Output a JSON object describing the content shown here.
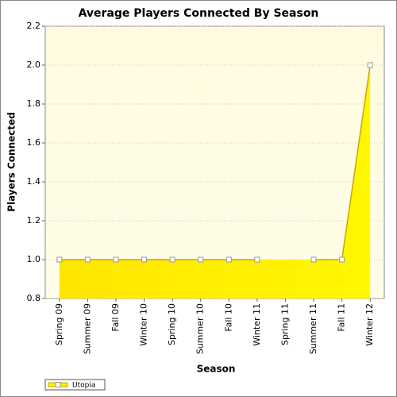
{
  "chart_data": {
    "type": "area",
    "title": "Average Players Connected By Season",
    "x_label": "Season",
    "y_label": "Players Connected",
    "categories": [
      "Spring 09",
      "Summer 09",
      "Fall 09",
      "Winter 10",
      "Spring 10",
      "Summer 10",
      "Fall 10",
      "Winter 11",
      "Spring 11",
      "Summer 11",
      "Fall 11",
      "Winter 12"
    ],
    "series": [
      {
        "name": "Utopia",
        "color": "#ffee00",
        "values": [
          1,
          1,
          1,
          1,
          1,
          1,
          1,
          1,
          null,
          1,
          1,
          2
        ]
      }
    ],
    "ylim": [
      0.8,
      2.2
    ],
    "yticks": [
      0.8,
      {
        "value": 1,
        "label": "1.0"
      },
      1.2,
      1.4,
      1.6,
      1.8,
      {
        "value": 2,
        "label": "2.0"
      },
      2.2
    ],
    "grid": true,
    "legend": "bottom-left"
  }
}
